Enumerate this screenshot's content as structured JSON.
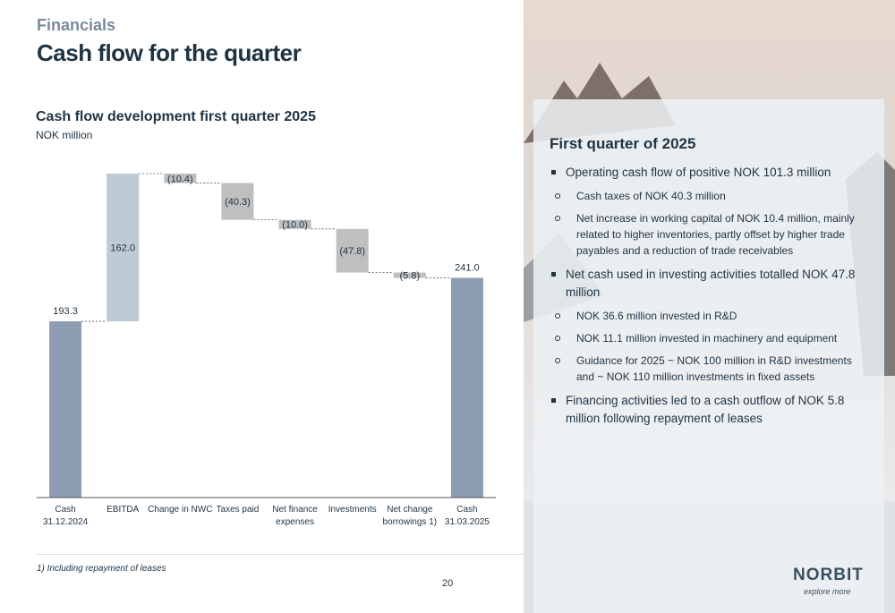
{
  "header": {
    "section": "Financials",
    "title": "Cash flow for the quarter"
  },
  "chart_data": {
    "type": "waterfall",
    "title": "Cash flow development first quarter 2025",
    "subtitle": "NOK million",
    "categories": [
      "Cash\n31.12.2024",
      "EBITDA",
      "Change in NWC",
      "Taxes paid",
      "Net finance\nexpenses",
      "Investments",
      "Net change\nborrowings 1)",
      "Cash\n31.03.2025"
    ],
    "values": [
      193.3,
      162.0,
      -10.4,
      -40.3,
      -10.0,
      -47.8,
      -5.8,
      241.0
    ],
    "value_labels": [
      "193.3",
      "162.0",
      "(10.4)",
      "(40.3)",
      "(10.0)",
      "(47.8)",
      "(5.8)",
      "241.0"
    ],
    "measures": [
      "total",
      "relative",
      "relative",
      "relative",
      "relative",
      "relative",
      "relative",
      "total"
    ],
    "colors": {
      "total": "#8e9db1",
      "increase": "#bccbd4",
      "decrease": "#bfbfbf"
    },
    "ylim": [
      0,
      370
    ]
  },
  "footnote": "1) Including repayment of leases",
  "page_number": "20",
  "panel": {
    "title": "First quarter of 2025",
    "bullets": [
      {
        "text": "Operating cash flow of positive NOK 101.3 million",
        "sub": [
          "Cash taxes of NOK 40.3 million",
          "Net increase in working capital of NOK 10.4 million, mainly related to higher inventories, partly offset by higher trade payables and a reduction of trade receivables"
        ]
      },
      {
        "text": "Net cash used in investing activities totalled NOK 47.8 million",
        "sub": [
          "NOK 36.6 million invested in R&D",
          "NOK 11.1 million invested in machinery and equipment",
          "Guidance for 2025 ~ NOK 100 million in R&D investments and ~ NOK 110 million investments in fixed assets"
        ]
      },
      {
        "text": "Financing activities led to a cash outflow of NOK 5.8 million following repayment of leases",
        "sub": []
      }
    ]
  },
  "logo": {
    "name": "NORBIT",
    "tagline": "explore more"
  }
}
